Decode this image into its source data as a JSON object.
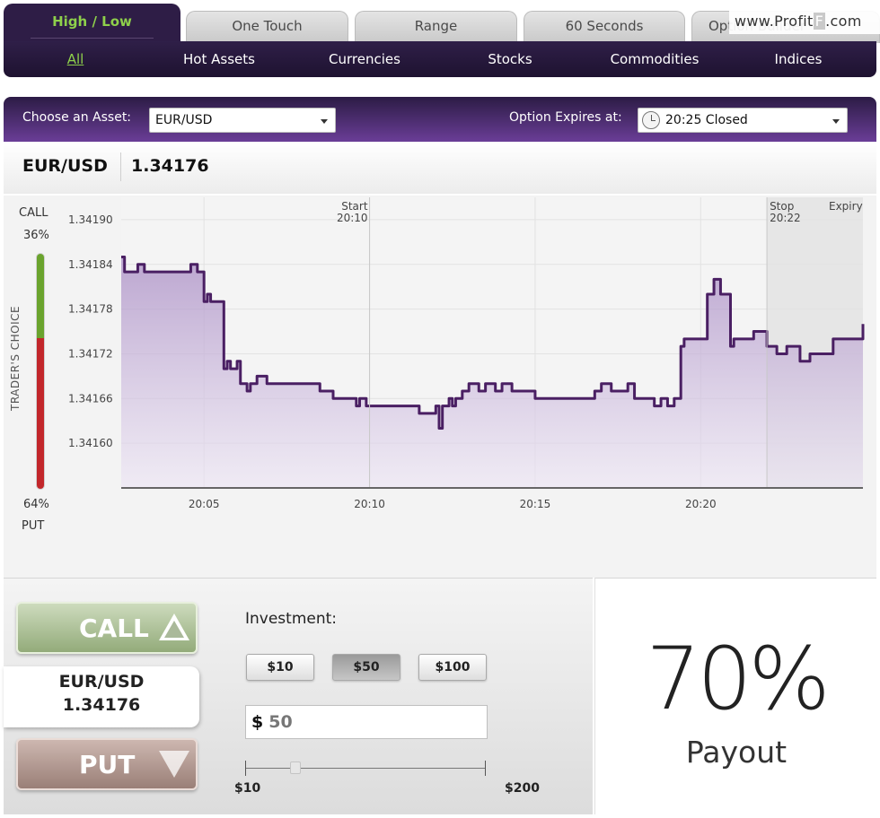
{
  "tabs": [
    {
      "label": "High / Low",
      "active": true
    },
    {
      "label": "One Touch",
      "active": false
    },
    {
      "label": "Range",
      "active": false
    },
    {
      "label": "60 Seconds",
      "active": false
    },
    {
      "label": "Option Builder",
      "active": false
    }
  ],
  "watermark": {
    "prefix": "www.Profit",
    "highlight": "F",
    "suffix": ".com"
  },
  "subnav": [
    "All",
    "Hot Assets",
    "Currencies",
    "Stocks",
    "Commodities",
    "Indices"
  ],
  "asset_bar": {
    "choose_label": "Choose an Asset:",
    "asset_value": "EUR/USD",
    "expiry_label": "Option Expires at:",
    "expiry_value": "20:25 Closed"
  },
  "quote": {
    "pair": "EUR/USD",
    "price": "1.34176"
  },
  "sentiment": {
    "call_label": "CALL",
    "call_pct": "36%",
    "call_fraction": 0.36,
    "put_pct": "64%",
    "put_label": "PUT",
    "title": "TRADER'S CHOICE"
  },
  "chart_data": {
    "type": "line",
    "x_ticks": [
      "20:05",
      "20:10",
      "20:15",
      "20:20"
    ],
    "y_ticks": [
      "1.34190",
      "1.34184",
      "1.34178",
      "1.34172",
      "1.34166",
      "1.34160"
    ],
    "ylim": [
      1.34154,
      1.34193
    ],
    "xlim_minutes": [
      2.5,
      24.9
    ],
    "markers": [
      {
        "label": "Start",
        "time": "20:10",
        "minute": 10.0
      },
      {
        "label": "Stop",
        "time": "20:22",
        "minute": 22.0
      },
      {
        "label": "Expiry",
        "time": "",
        "minute": 24.9
      }
    ],
    "series": [
      {
        "x": [
          2.5,
          2.6,
          2.8,
          3.0,
          3.2,
          3.5,
          3.8,
          4.2,
          4.5,
          4.6,
          4.8,
          5.0,
          5.1,
          5.2,
          5.5,
          5.6,
          5.7,
          5.8,
          6.0,
          6.1,
          6.3,
          6.4,
          6.6,
          6.9,
          7.1,
          7.3,
          8.0,
          8.5,
          8.7,
          8.9,
          9.3,
          9.6,
          9.7,
          9.9,
          10.5,
          11.0,
          11.2,
          11.5,
          12.0,
          12.1,
          12.2,
          12.4,
          12.5,
          12.6,
          12.8,
          13.0,
          13.3,
          13.5,
          13.8,
          14.0,
          14.3,
          14.6,
          15.0,
          15.6,
          16.0,
          16.2,
          16.5,
          16.8,
          17.0,
          17.3,
          17.6,
          17.8,
          18.0,
          18.3,
          18.5,
          18.6,
          18.8,
          19.0,
          19.2,
          19.4,
          19.5,
          19.6,
          19.8,
          20.0,
          20.2,
          20.4,
          20.6,
          20.8,
          20.9,
          21.0,
          21.3,
          21.6,
          22.0,
          22.3,
          22.6,
          23.0,
          23.3,
          23.6,
          24.0,
          24.9
        ],
        "y": [
          1.34185,
          1.34183,
          1.34183,
          1.34184,
          1.34183,
          1.34183,
          1.34183,
          1.34183,
          1.34183,
          1.34184,
          1.34183,
          1.34179,
          1.3418,
          1.34179,
          1.34179,
          1.3417,
          1.34171,
          1.3417,
          1.34171,
          1.34168,
          1.34167,
          1.34168,
          1.34169,
          1.34168,
          1.34168,
          1.34168,
          1.34168,
          1.34167,
          1.34167,
          1.34166,
          1.34166,
          1.34165,
          1.34166,
          1.34165,
          1.34165,
          1.34165,
          1.34165,
          1.34164,
          1.34165,
          1.34162,
          1.34165,
          1.34166,
          1.34165,
          1.34166,
          1.34167,
          1.34168,
          1.34167,
          1.34168,
          1.34167,
          1.34168,
          1.34167,
          1.34167,
          1.34166,
          1.34166,
          1.34166,
          1.34166,
          1.34166,
          1.34167,
          1.34168,
          1.34167,
          1.34167,
          1.34168,
          1.34166,
          1.34166,
          1.34166,
          1.34165,
          1.34166,
          1.34165,
          1.34166,
          1.34173,
          1.34174,
          1.34174,
          1.34174,
          1.34174,
          1.3418,
          1.34182,
          1.3418,
          1.3418,
          1.34173,
          1.34174,
          1.34174,
          1.34175,
          1.34173,
          1.34172,
          1.34173,
          1.34171,
          1.34172,
          1.34172,
          1.34174,
          1.34176
        ]
      }
    ]
  },
  "trade": {
    "call_label": "CALL",
    "put_label": "PUT",
    "quote_pair": "EUR/USD",
    "quote_price": "1.34176",
    "investment_label": "Investment:",
    "amounts": [
      "$10",
      "$50",
      "$100"
    ],
    "selected_amount": "$50",
    "currency_symbol": "$",
    "amount_value": "50",
    "slider_min": "$10",
    "slider_max": "$200",
    "slider_fraction": 0.21
  },
  "payout": {
    "value": "70%",
    "label": "Payout"
  }
}
